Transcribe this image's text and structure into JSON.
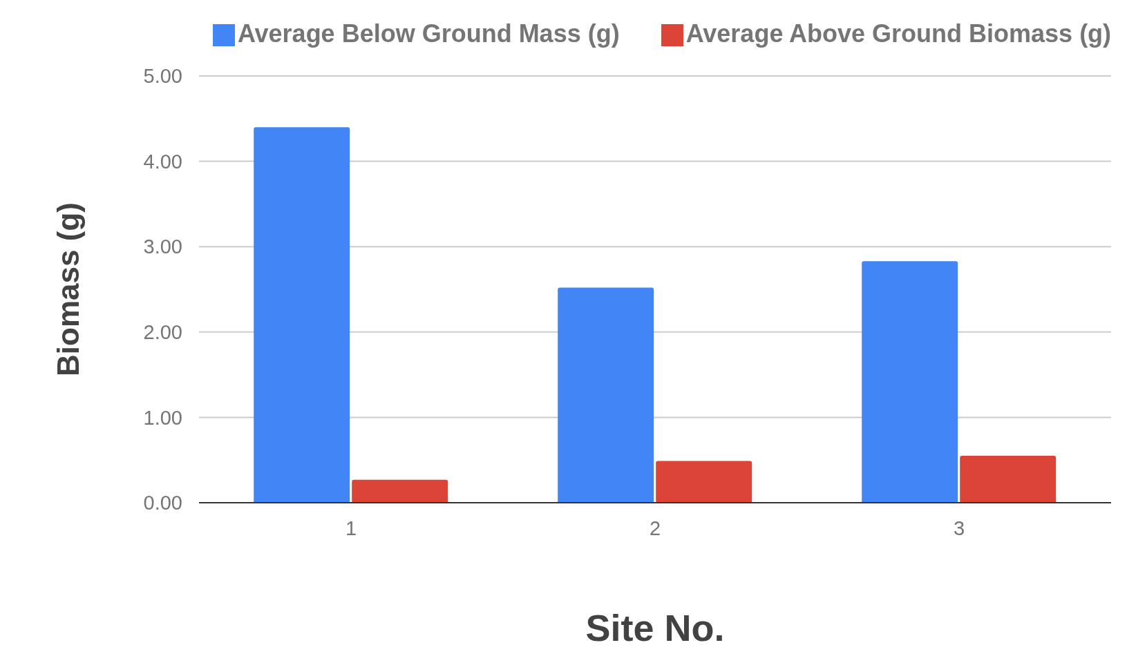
{
  "chart_data": {
    "type": "bar",
    "xlabel": "Site No.",
    "ylabel": "Biomass (g)",
    "categories": [
      "1",
      "2",
      "3"
    ],
    "series": [
      {
        "name": "Average Below Ground Mass (g)",
        "color": "#4285f4",
        "values": [
          4.4,
          2.52,
          2.83
        ]
      },
      {
        "name": "Average Above Ground Biomass (g)",
        "color": "#db4437",
        "values": [
          0.27,
          0.49,
          0.55
        ]
      }
    ],
    "ylim": [
      0,
      5
    ],
    "yticks": [
      {
        "value": 0,
        "label": "0.00"
      },
      {
        "value": 1,
        "label": "1.00"
      },
      {
        "value": 2,
        "label": "2.00"
      },
      {
        "value": 3,
        "label": "3.00"
      },
      {
        "value": 4,
        "label": "4.00"
      },
      {
        "value": 5,
        "label": "5.00"
      }
    ],
    "grid": "y",
    "legend": "top"
  }
}
